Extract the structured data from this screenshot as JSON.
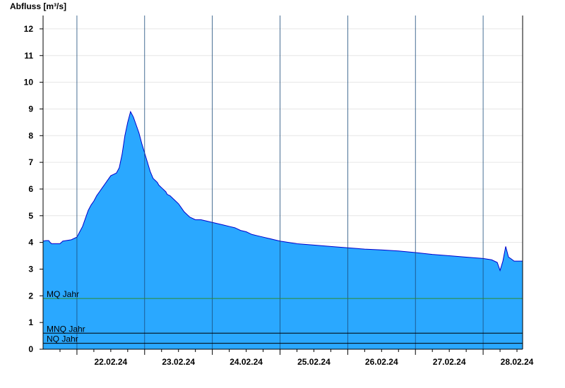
{
  "colors": {
    "fill": "#2aa8ff",
    "outline": "#0000cc",
    "grid": "#e6e6e6",
    "axis": "#000000",
    "mq_line": "#2e8b2e",
    "ref_line": "#000000"
  },
  "chart_data": {
    "type": "area",
    "ylabel": "Abfluss [m³/s]",
    "ylim": [
      0,
      12.5
    ],
    "yticks": [
      0,
      1,
      2,
      3,
      4,
      5,
      6,
      7,
      8,
      9,
      10,
      11,
      12
    ],
    "xlim": [
      "2024-02-21T12:00",
      "2024-02-28T14:00"
    ],
    "xticks": [
      {
        "label": "22.02.24",
        "at": "2024-02-22T12:00"
      },
      {
        "label": "23.02.24",
        "at": "2024-02-23T12:00"
      },
      {
        "label": "24.02.24",
        "at": "2024-02-24T12:00"
      },
      {
        "label": "25.02.24",
        "at": "2024-02-25T12:00"
      },
      {
        "label": "26.02.24",
        "at": "2024-02-26T12:00"
      },
      {
        "label": "27.02.24",
        "at": "2024-02-27T12:00"
      },
      {
        "label": "28.02.24",
        "at": "2024-02-28T12:00"
      }
    ],
    "day_boundaries": [
      "2024-02-22T00:00",
      "2024-02-23T00:00",
      "2024-02-24T00:00",
      "2024-02-25T00:00",
      "2024-02-26T00:00",
      "2024-02-27T00:00",
      "2024-02-28T00:00"
    ],
    "reference_lines": [
      {
        "label": "MQ Jahr",
        "value": 1.9
      },
      {
        "label": "MNQ Jahr",
        "value": 0.6
      },
      {
        "label": "NQ Jahr",
        "value": 0.22
      }
    ],
    "series": [
      {
        "x": [
          "2024-02-21T12:00",
          "2024-02-21T13:00",
          "2024-02-21T14:00",
          "2024-02-21T14:30",
          "2024-02-21T15:00",
          "2024-02-21T18:00",
          "2024-02-21T19:00",
          "2024-02-21T22:00",
          "2024-02-22T00:00",
          "2024-02-22T01:00",
          "2024-02-22T02:00",
          "2024-02-22T03:00",
          "2024-02-22T04:00",
          "2024-02-22T05:00",
          "2024-02-22T06:00",
          "2024-02-22T07:00",
          "2024-02-22T08:00",
          "2024-02-22T09:00",
          "2024-02-22T10:00",
          "2024-02-22T11:00",
          "2024-02-22T12:00",
          "2024-02-22T13:00",
          "2024-02-22T14:00",
          "2024-02-22T15:00",
          "2024-02-22T16:00",
          "2024-02-22T17:00",
          "2024-02-22T18:00",
          "2024-02-22T19:00",
          "2024-02-22T20:00",
          "2024-02-22T21:00",
          "2024-02-22T22:00",
          "2024-02-22T23:00",
          "2024-02-23T00:00",
          "2024-02-23T01:00",
          "2024-02-23T02:00",
          "2024-02-23T03:00",
          "2024-02-23T04:00",
          "2024-02-23T04:30",
          "2024-02-23T05:00",
          "2024-02-23T06:00",
          "2024-02-23T07:00",
          "2024-02-23T07:30",
          "2024-02-23T08:00",
          "2024-02-23T09:00",
          "2024-02-23T10:00",
          "2024-02-23T11:00",
          "2024-02-23T12:00",
          "2024-02-23T13:00",
          "2024-02-23T14:00",
          "2024-02-23T16:00",
          "2024-02-23T18:00",
          "2024-02-23T20:00",
          "2024-02-23T22:00",
          "2024-02-24T00:00",
          "2024-02-24T02:00",
          "2024-02-24T04:00",
          "2024-02-24T06:00",
          "2024-02-24T08:00",
          "2024-02-24T10:00",
          "2024-02-24T12:00",
          "2024-02-24T14:00",
          "2024-02-24T16:00",
          "2024-02-24T18:00",
          "2024-02-24T20:00",
          "2024-02-24T22:00",
          "2024-02-25T00:00",
          "2024-02-25T06:00",
          "2024-02-25T12:00",
          "2024-02-25T18:00",
          "2024-02-26T00:00",
          "2024-02-26T06:00",
          "2024-02-26T12:00",
          "2024-02-26T18:00",
          "2024-02-27T00:00",
          "2024-02-27T06:00",
          "2024-02-27T12:00",
          "2024-02-27T18:00",
          "2024-02-28T00:00",
          "2024-02-28T03:00",
          "2024-02-28T05:00",
          "2024-02-28T06:00",
          "2024-02-28T07:00",
          "2024-02-28T08:00",
          "2024-02-28T09:00",
          "2024-02-28T10:00",
          "2024-02-28T11:00",
          "2024-02-28T12:00",
          "2024-02-28T14:00"
        ],
        "values": [
          4.05,
          4.07,
          4.07,
          4.0,
          3.95,
          3.95,
          4.05,
          4.1,
          4.2,
          4.4,
          4.6,
          4.9,
          5.2,
          5.4,
          5.55,
          5.75,
          5.9,
          6.05,
          6.2,
          6.35,
          6.5,
          6.55,
          6.6,
          6.8,
          7.3,
          8.0,
          8.5,
          8.9,
          8.7,
          8.4,
          8.1,
          7.7,
          7.35,
          7.0,
          6.65,
          6.4,
          6.3,
          6.25,
          6.15,
          6.05,
          5.95,
          5.9,
          5.8,
          5.75,
          5.65,
          5.55,
          5.45,
          5.3,
          5.15,
          4.95,
          4.85,
          4.85,
          4.8,
          4.75,
          4.7,
          4.65,
          4.6,
          4.55,
          4.45,
          4.4,
          4.3,
          4.25,
          4.2,
          4.15,
          4.1,
          4.05,
          3.95,
          3.9,
          3.85,
          3.8,
          3.75,
          3.72,
          3.68,
          3.62,
          3.55,
          3.5,
          3.45,
          3.4,
          3.35,
          3.25,
          2.95,
          3.3,
          3.85,
          3.45,
          3.38,
          3.3,
          3.3,
          3.3
        ]
      }
    ]
  }
}
